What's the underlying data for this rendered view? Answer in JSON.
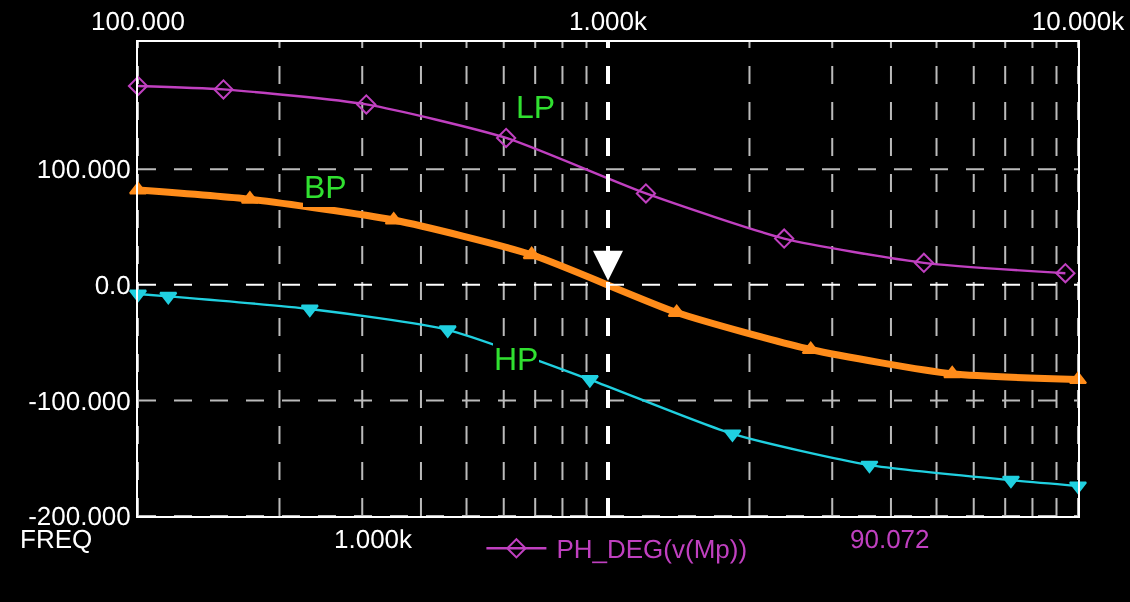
{
  "chart_data": {
    "type": "line",
    "xlabel": "FREQ",
    "log": "x",
    "grid": true,
    "legend": "bottom",
    "line_style": "solid",
    "xlim": [
      100,
      10000
    ],
    "ylim": [
      -200,
      210
    ],
    "xticks": [
      {
        "value": 100,
        "label": "100.000"
      },
      {
        "value": 200,
        "label": null
      },
      {
        "value": 300,
        "label": null
      },
      {
        "value": 400,
        "label": null
      },
      {
        "value": 500,
        "label": null
      },
      {
        "value": 600,
        "label": null
      },
      {
        "value": 700,
        "label": null
      },
      {
        "value": 800,
        "label": null
      },
      {
        "value": 900,
        "label": null
      },
      {
        "value": 1000,
        "label": "1.000k"
      },
      {
        "value": 2000,
        "label": null
      },
      {
        "value": 3000,
        "label": null
      },
      {
        "value": 4000,
        "label": null
      },
      {
        "value": 5000,
        "label": null
      },
      {
        "value": 6000,
        "label": null
      },
      {
        "value": 7000,
        "label": null
      },
      {
        "value": 8000,
        "label": null
      },
      {
        "value": 9000,
        "label": null
      },
      {
        "value": 10000,
        "label": "10.000k"
      }
    ],
    "yticks": [
      {
        "value": -200,
        "label": "-200.000"
      },
      {
        "value": -100,
        "label": "-100.000"
      },
      {
        "value": 0,
        "label": "0.0"
      },
      {
        "value": 100,
        "label": "100.000"
      }
    ],
    "series": [
      {
        "name": "PH_DEG(v(Mp))",
        "color": "#c040c0",
        "marker": "diamond",
        "x": [
          100,
          152,
          306,
          607,
          1204,
          2370,
          4700,
          9400
        ],
        "values": [
          172,
          169,
          156,
          127,
          79,
          40,
          19,
          10
        ]
      },
      {
        "color": "#ff8c1a",
        "marker": "triangle",
        "x": [
          100,
          173,
          350,
          688,
          1400,
          2700,
          5400,
          10000
        ],
        "values": [
          82,
          74,
          56,
          26,
          -24,
          -56,
          -77,
          -82
        ]
      },
      {
        "color": "#20d0e0",
        "marker": "triangle-down",
        "x": [
          100,
          116,
          232,
          456,
          915,
          1840,
          3600,
          7200,
          10000
        ],
        "values": [
          -8,
          -10,
          -21,
          -39,
          -82,
          -129,
          -156,
          -169,
          -174
        ]
      }
    ],
    "ref_lines": [
      {
        "axis": "x",
        "value": 1000,
        "color": "#ffffff",
        "line_style": "dashed"
      },
      {
        "axis": "y",
        "value": 0,
        "color": "#ffffff",
        "line_style": "dashed"
      }
    ],
    "annotations": [
      {
        "text": "LP",
        "x": 700,
        "y": 152
      },
      {
        "text": "BP",
        "x": 250,
        "y": 82
      },
      {
        "text": "HP",
        "x": 640,
        "y": -66
      },
      "1.000k",
      "90.072"
    ]
  }
}
